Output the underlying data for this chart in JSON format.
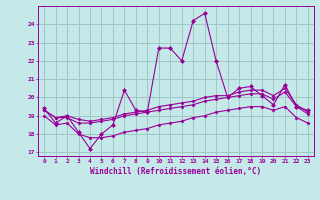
{
  "background_color": "#c5e8e8",
  "grid_color": "#a0c8c8",
  "line_color": "#990099",
  "xlabel": "Windchill (Refroidissement éolien,°C)",
  "ylim": [
    16.8,
    25.0
  ],
  "xlim": [
    -0.5,
    23.5
  ],
  "yticks": [
    17,
    18,
    19,
    20,
    21,
    22,
    23,
    24
  ],
  "xticks": [
    0,
    1,
    2,
    3,
    4,
    5,
    6,
    7,
    8,
    9,
    10,
    11,
    12,
    13,
    14,
    15,
    16,
    17,
    18,
    19,
    20,
    21,
    22,
    23
  ],
  "series1_x": [
    0,
    1,
    2,
    3,
    4,
    5,
    6,
    7,
    8,
    9,
    10,
    11,
    12,
    13,
    14,
    15,
    16,
    17,
    18,
    19,
    20,
    21,
    22,
    23
  ],
  "series1_y": [
    19.4,
    18.6,
    19.0,
    18.1,
    17.2,
    18.0,
    18.5,
    20.4,
    19.3,
    19.2,
    22.7,
    22.7,
    22.0,
    24.2,
    24.6,
    22.0,
    20.0,
    20.5,
    20.6,
    20.1,
    19.6,
    20.7,
    19.5,
    19.3
  ],
  "series2_x": [
    0,
    1,
    2,
    3,
    4,
    5,
    6,
    7,
    8,
    9,
    10,
    11,
    12,
    13,
    14,
    15,
    16,
    17,
    18,
    19,
    20,
    21,
    22,
    23
  ],
  "series2_y": [
    19.3,
    18.9,
    19.0,
    18.8,
    18.7,
    18.8,
    18.9,
    19.1,
    19.2,
    19.3,
    19.5,
    19.6,
    19.7,
    19.8,
    20.0,
    20.1,
    20.1,
    20.3,
    20.4,
    20.4,
    20.1,
    20.5,
    19.6,
    19.2
  ],
  "series3_x": [
    0,
    1,
    2,
    3,
    4,
    5,
    6,
    7,
    8,
    9,
    10,
    11,
    12,
    13,
    14,
    15,
    16,
    17,
    18,
    19,
    20,
    21,
    22,
    23
  ],
  "series3_y": [
    19.3,
    18.9,
    18.9,
    18.6,
    18.6,
    18.7,
    18.8,
    19.0,
    19.1,
    19.2,
    19.3,
    19.4,
    19.5,
    19.6,
    19.8,
    19.9,
    20.0,
    20.1,
    20.2,
    20.2,
    19.9,
    20.3,
    19.5,
    19.1
  ],
  "series4_x": [
    0,
    1,
    2,
    3,
    4,
    5,
    6,
    7,
    8,
    9,
    10,
    11,
    12,
    13,
    14,
    15,
    16,
    17,
    18,
    19,
    20,
    21,
    22,
    23
  ],
  "series4_y": [
    19.0,
    18.5,
    18.6,
    18.0,
    17.8,
    17.8,
    17.9,
    18.1,
    18.2,
    18.3,
    18.5,
    18.6,
    18.7,
    18.9,
    19.0,
    19.2,
    19.3,
    19.4,
    19.5,
    19.5,
    19.3,
    19.5,
    18.9,
    18.6
  ]
}
